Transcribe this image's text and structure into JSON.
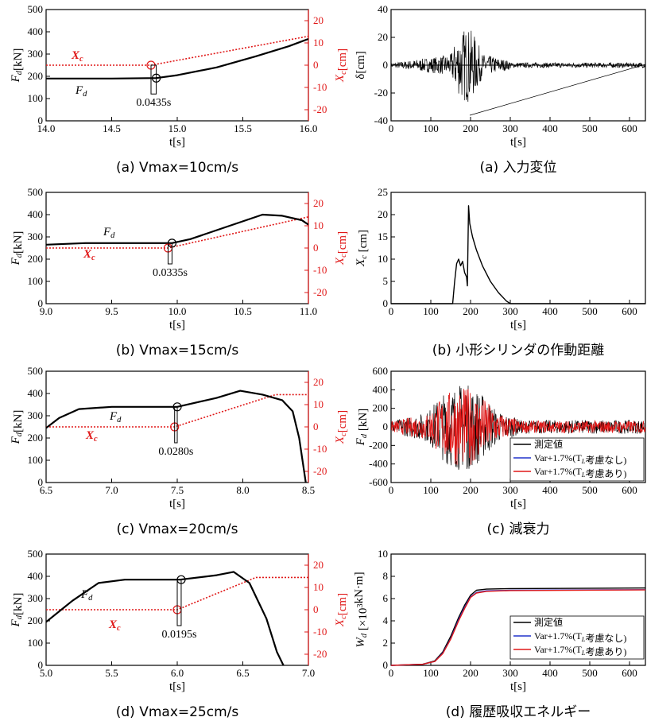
{
  "colors": {
    "black": "#000000",
    "red": "#e01818",
    "blue": "#2233cc"
  },
  "chart_data": [
    {
      "id": "left-a",
      "type": "line",
      "caption": "(a) Vmax=10cm/s",
      "xlabel": "t[s]",
      "ylabel": "F_d[kN]",
      "y2label": "X_c[cm]",
      "xlim": [
        14.0,
        16.0
      ],
      "ylim": [
        0,
        500
      ],
      "y2lim": [
        -25,
        25
      ],
      "xticks": [
        "14.0",
        "14.5",
        "15.0",
        "15.5",
        "16.0"
      ],
      "yticks": [
        "0",
        "100",
        "200",
        "300",
        "400",
        "500"
      ],
      "y2ticks": [
        "20",
        "10",
        "0",
        "-10",
        "-20"
      ],
      "series": [
        {
          "label": "F_d",
          "axis": "left",
          "x": [
            14.0,
            14.5,
            14.84,
            15.0,
            15.3,
            15.6,
            15.85,
            16.0
          ],
          "y": [
            190,
            190,
            192,
            205,
            240,
            290,
            335,
            368
          ]
        },
        {
          "label": "X_c",
          "axis": "right",
          "x": [
            14.0,
            14.8,
            16.0
          ],
          "y": [
            0,
            0,
            13
          ]
        }
      ],
      "labels": {
        "fd": "F_d",
        "xc": "X_c",
        "delay": "0.0435s"
      },
      "markers": {
        "fd": [
          14.84,
          192
        ],
        "xc": [
          14.8,
          0
        ]
      }
    },
    {
      "id": "left-b",
      "type": "line",
      "caption": "(b) Vmax=15cm/s",
      "xlabel": "t[s]",
      "ylabel": "F_d[kN]",
      "y2label": "X_c[cm]",
      "xlim": [
        9.0,
        11.0
      ],
      "ylim": [
        0,
        500
      ],
      "y2lim": [
        -25,
        25
      ],
      "xticks": [
        "9.0",
        "9.5",
        "10.0",
        "10.5",
        "11.0"
      ],
      "yticks": [
        "0",
        "100",
        "200",
        "300",
        "400",
        "500"
      ],
      "y2ticks": [
        "20",
        "10",
        "0",
        "-10",
        "-20"
      ],
      "series": [
        {
          "label": "F_d",
          "axis": "left",
          "x": [
            9.0,
            9.3,
            9.96,
            10.1,
            10.4,
            10.65,
            10.8,
            10.95,
            11.0
          ],
          "y": [
            265,
            272,
            272,
            290,
            350,
            400,
            395,
            375,
            355
          ]
        },
        {
          "label": "X_c",
          "axis": "right",
          "x": [
            9.0,
            9.93,
            11.0
          ],
          "y": [
            0,
            0,
            14
          ]
        }
      ],
      "labels": {
        "fd": "F_d",
        "xc": "X_c",
        "delay": "0.0335s"
      },
      "markers": {
        "fd": [
          9.96,
          272
        ],
        "xc": [
          9.93,
          0
        ]
      }
    },
    {
      "id": "left-c",
      "type": "line",
      "caption": "(c) Vmax=20cm/s",
      "xlabel": "t[s]",
      "ylabel": "F_d[kN]",
      "y2label": "X_c[cm]",
      "xlim": [
        6.5,
        8.5
      ],
      "ylim": [
        0,
        500
      ],
      "y2lim": [
        -25,
        25
      ],
      "xticks": [
        "6.5",
        "7.0",
        "7.5",
        "8.0",
        "8.5"
      ],
      "yticks": [
        "0",
        "100",
        "200",
        "300",
        "400",
        "500"
      ],
      "y2ticks": [
        "20",
        "10",
        "0",
        "-10",
        "-20"
      ],
      "series": [
        {
          "label": "F_d",
          "axis": "left",
          "x": [
            6.5,
            6.6,
            6.75,
            7.0,
            7.5,
            7.8,
            7.98,
            8.15,
            8.3,
            8.38,
            8.43,
            8.48
          ],
          "y": [
            245,
            290,
            330,
            340,
            340,
            380,
            412,
            395,
            370,
            320,
            200,
            0
          ]
        },
        {
          "label": "X_c",
          "axis": "right",
          "x": [
            6.5,
            7.48,
            8.25,
            8.4,
            8.5
          ],
          "y": [
            0,
            0,
            14.5,
            14.5,
            14.5
          ]
        }
      ],
      "labels": {
        "fd": "F_d",
        "xc": "X_c",
        "delay": "0.0280s"
      },
      "markers": {
        "fd": [
          7.5,
          340
        ],
        "xc": [
          7.48,
          0
        ]
      }
    },
    {
      "id": "left-d",
      "type": "line",
      "caption": "(d) Vmax=25cm/s",
      "xlabel": "t[s]",
      "ylabel": "F_d[kN]",
      "y2label": "X_c[cm]",
      "xlim": [
        5.0,
        7.0
      ],
      "ylim": [
        0,
        500
      ],
      "y2lim": [
        -25,
        25
      ],
      "xticks": [
        "5.0",
        "5.5",
        "6.0",
        "6.5",
        "7.0"
      ],
      "yticks": [
        "0",
        "100",
        "200",
        "300",
        "400",
        "500"
      ],
      "y2ticks": [
        "20",
        "10",
        "0",
        "-10",
        "-20"
      ],
      "series": [
        {
          "label": "F_d",
          "axis": "left",
          "x": [
            5.0,
            5.2,
            5.4,
            5.6,
            6.02,
            6.3,
            6.43,
            6.55,
            6.68,
            6.76,
            6.81
          ],
          "y": [
            195,
            290,
            370,
            385,
            385,
            405,
            420,
            370,
            210,
            60,
            0
          ]
        },
        {
          "label": "X_c",
          "axis": "right",
          "x": [
            6.0,
            6.6,
            7.0
          ],
          "y": [
            0,
            14.5,
            14.5
          ],
          "dash_from": 5.0
        }
      ],
      "labels": {
        "fd": "F_d",
        "xc": "X_c",
        "delay": "0.0195s"
      },
      "markers": {
        "fd": [
          6.03,
          385
        ],
        "xc": [
          6.0,
          0
        ]
      }
    },
    {
      "id": "right-a",
      "type": "line",
      "caption": "(a) 入力変位",
      "xlabel": "t[s]",
      "ylabel": "δ[cm]",
      "xlim": [
        0,
        640
      ],
      "ylim": [
        -40,
        40
      ],
      "xticks": [
        "0",
        "100",
        "200",
        "300",
        "400",
        "500",
        "600"
      ],
      "yticks": [
        "-40",
        "-20",
        "0",
        "20",
        "40"
      ]
    },
    {
      "id": "right-b",
      "type": "line",
      "caption": "(b) 小形シリンダの作動距離",
      "xlabel": "t[s]",
      "ylabel": "X_c [cm]",
      "xlim": [
        0,
        640
      ],
      "ylim": [
        0,
        25
      ],
      "xticks": [
        "0",
        "100",
        "200",
        "300",
        "400",
        "500",
        "600"
      ],
      "yticks": [
        "0",
        "5",
        "10",
        "15",
        "20",
        "25"
      ],
      "series": [
        {
          "x": [
            0,
            155,
            160,
            165,
            170,
            175,
            180,
            185,
            190,
            192,
            195,
            198,
            205,
            215,
            230,
            250,
            270,
            290,
            300,
            640
          ],
          "y": [
            0,
            0,
            5,
            9,
            10,
            8.5,
            9.5,
            7,
            6,
            4,
            22,
            18,
            15,
            12,
            8.5,
            5,
            2.5,
            0.6,
            0,
            0
          ]
        }
      ]
    },
    {
      "id": "right-c",
      "type": "line",
      "caption": "(c) 減衰力",
      "xlabel": "t[s]",
      "ylabel": "F_d [kN]",
      "xlim": [
        0,
        640
      ],
      "ylim": [
        -600,
        600
      ],
      "xticks": [
        "0",
        "100",
        "200",
        "300",
        "400",
        "500",
        "600"
      ],
      "yticks": [
        "-600",
        "-400",
        "-200",
        "0",
        "200",
        "400",
        "600"
      ],
      "legend": {
        "position": "bottom-right",
        "entries": [
          "測定値",
          "Var+1.7%(T_L考慮なし)",
          "Var+1.7%(T_L考慮あり)"
        ]
      }
    },
    {
      "id": "right-d",
      "type": "line",
      "caption": "(d) 履歴吸収エネルギー",
      "xlabel": "t[s]",
      "ylabel": "W_d [×10^3kN·m]",
      "xlim": [
        0,
        640
      ],
      "ylim": [
        0,
        10
      ],
      "xticks": [
        "0",
        "100",
        "200",
        "300",
        "400",
        "500",
        "600"
      ],
      "yticks": [
        "0",
        "2",
        "4",
        "6",
        "8",
        "10"
      ],
      "legend": {
        "position": "bottom-right",
        "entries": [
          "測定値",
          "Var+1.7%(T_L考慮なし)",
          "Var+1.7%(T_L考慮あり)"
        ]
      },
      "series": [
        {
          "label": "測定値",
          "x": [
            0,
            80,
            110,
            130,
            150,
            170,
            185,
            200,
            215,
            240,
            300,
            640
          ],
          "y": [
            0,
            0.1,
            0.4,
            1.2,
            2.6,
            4.3,
            5.4,
            6.3,
            6.75,
            6.85,
            6.9,
            6.95
          ]
        },
        {
          "label": "Var+1.7%(T_L考慮なし)",
          "x": [
            0,
            80,
            110,
            130,
            150,
            170,
            185,
            200,
            215,
            240,
            300,
            640
          ],
          "y": [
            0,
            0.1,
            0.35,
            1.1,
            2.4,
            4.1,
            5.2,
            6.15,
            6.55,
            6.7,
            6.75,
            6.8
          ]
        },
        {
          "label": "Var+1.7%(T_L考慮あり)",
          "x": [
            0,
            80,
            110,
            130,
            150,
            170,
            185,
            200,
            215,
            240,
            300,
            640
          ],
          "y": [
            0,
            0.1,
            0.35,
            1.05,
            2.35,
            4.0,
            5.1,
            6.1,
            6.5,
            6.65,
            6.72,
            6.78
          ]
        }
      ]
    }
  ]
}
